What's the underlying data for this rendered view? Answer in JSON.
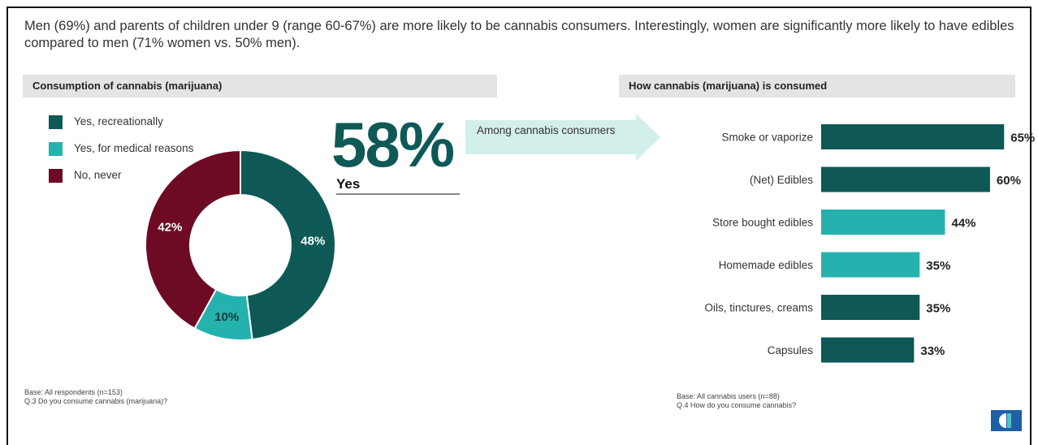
{
  "headline": "Men (69%) and parents of children under 9 (range 60-67%) are more likely to be cannabis consumers. Interestingly, women are significantly more likely to have edibles compared to men (71% women vs. 50% men).",
  "left_panel": {
    "title": "Consumption of cannabis (marijuana)",
    "big_value": "58%",
    "big_label": "Yes",
    "base_line1": "Base: All respondents (n=153)",
    "base_line2": "Q.3 Do you consume cannabis (marijuana)?"
  },
  "arrow_label": "Among cannabis consumers",
  "right_panel": {
    "title": "How cannabis (marijuana) is consumed",
    "base_line1": "Base: All cannabis users (n=88)",
    "base_line2": "Q.4 How do you consume cannabis?"
  },
  "colors": {
    "dark_teal": "#0e5956",
    "light_teal": "#25b2ae",
    "maroon": "#6d0b24",
    "arrow": "#d3efec"
  },
  "logo_icon": "brand-logo",
  "chart_data": [
    {
      "type": "pie",
      "variant": "donut",
      "title": "Consumption of cannabis (marijuana)",
      "labels": [
        "Yes, recreationally",
        "Yes, for medical reasons",
        "No, never"
      ],
      "values": [
        48,
        10,
        42
      ],
      "value_labels": [
        "48%",
        "10%",
        "42%"
      ],
      "colors": [
        "#0e5956",
        "#25b2ae",
        "#6d0b24"
      ],
      "legend": "top-left"
    },
    {
      "type": "bar",
      "orientation": "horizontal",
      "title": "How cannabis (marijuana) is consumed",
      "categories": [
        "Smoke or vaporize",
        "(Net) Edibles",
        "Store bought edibles",
        "Homemade edibles",
        "Oils, tinctures, creams",
        "Capsules"
      ],
      "values": [
        65,
        60,
        44,
        35,
        35,
        33
      ],
      "value_labels": [
        "65%",
        "60%",
        "44%",
        "35%",
        "35%",
        "33%"
      ],
      "colors": [
        "#0e5956",
        "#0e5956",
        "#25b2ae",
        "#25b2ae",
        "#0e5956",
        "#0e5956"
      ],
      "xlim": [
        0,
        100
      ]
    }
  ]
}
